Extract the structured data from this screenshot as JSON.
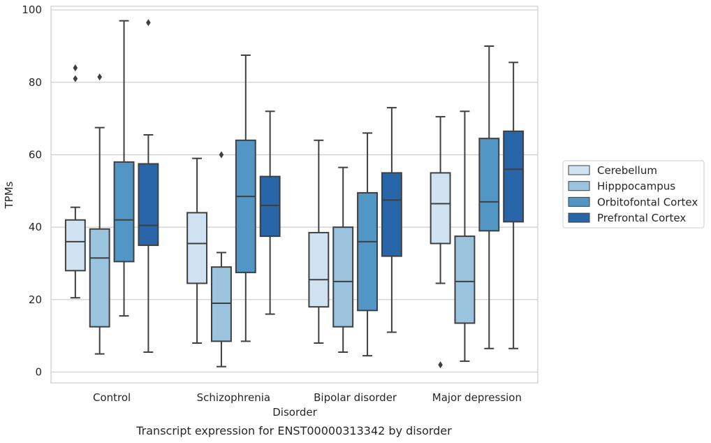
{
  "chart_data": {
    "type": "box",
    "title": "Transcript expression for ENST00000313342 by disorder",
    "xlabel": "Disorder",
    "ylabel": "TPMs",
    "ylim": [
      -3,
      101
    ],
    "yticks": [
      0,
      20,
      40,
      60,
      80,
      100
    ],
    "grid": "horizontal",
    "legend_position": "right",
    "categories": [
      "Control",
      "Schizophrenia",
      "Bipolar disorder",
      "Major depression"
    ],
    "series": [
      {
        "name": "Cerebellum",
        "color": "#d0e1f2",
        "boxes": [
          {
            "whislo": 20.5,
            "q1": 28,
            "med": 36,
            "q3": 42,
            "whishi": 45.5,
            "fliers": [
              81,
              84
            ]
          },
          {
            "whislo": 8,
            "q1": 24.5,
            "med": 35.5,
            "q3": 44,
            "whishi": 59,
            "fliers": []
          },
          {
            "whislo": 8,
            "q1": 18,
            "med": 25.5,
            "q3": 38.5,
            "whishi": 64,
            "fliers": []
          },
          {
            "whislo": 24.5,
            "q1": 35.5,
            "med": 46.5,
            "q3": 55,
            "whishi": 70.5,
            "fliers": [
              2
            ]
          }
        ]
      },
      {
        "name": "Hipppocampus",
        "color": "#9ac4de",
        "boxes": [
          {
            "whislo": 5,
            "q1": 12.5,
            "med": 31.5,
            "q3": 39.5,
            "whishi": 67.5,
            "fliers": [
              81.5
            ]
          },
          {
            "whislo": 1.5,
            "q1": 8.5,
            "med": 19,
            "q3": 29,
            "whishi": 33,
            "fliers": [
              60
            ]
          },
          {
            "whislo": 5.5,
            "q1": 12.5,
            "med": 25,
            "q3": 40,
            "whishi": 56.5,
            "fliers": []
          },
          {
            "whislo": 3,
            "q1": 13.5,
            "med": 25,
            "q3": 37.5,
            "whishi": 72,
            "fliers": []
          }
        ]
      },
      {
        "name": "Orbitofontal Cortex",
        "color": "#5296c5",
        "boxes": [
          {
            "whislo": 15.5,
            "q1": 30.5,
            "med": 42,
            "q3": 58,
            "whishi": 97,
            "fliers": []
          },
          {
            "whislo": 8.5,
            "q1": 27.5,
            "med": 48.5,
            "q3": 64,
            "whishi": 87.5,
            "fliers": []
          },
          {
            "whislo": 4.5,
            "q1": 17,
            "med": 36,
            "q3": 49.5,
            "whishi": 66,
            "fliers": []
          },
          {
            "whislo": 6.5,
            "q1": 39,
            "med": 47,
            "q3": 64.5,
            "whishi": 90,
            "fliers": []
          }
        ]
      },
      {
        "name": "Prefrontal Cortex",
        "color": "#2865a9",
        "boxes": [
          {
            "whislo": 5.5,
            "q1": 35,
            "med": 40.5,
            "q3": 57.5,
            "whishi": 65.5,
            "fliers": [
              96.5
            ]
          },
          {
            "whislo": 16,
            "q1": 37.5,
            "med": 46,
            "q3": 54,
            "whishi": 72,
            "fliers": []
          },
          {
            "whislo": 11,
            "q1": 32,
            "med": 47.5,
            "q3": 55,
            "whishi": 73,
            "fliers": []
          },
          {
            "whislo": 6.5,
            "q1": 41.5,
            "med": 56,
            "q3": 66.5,
            "whishi": 85.5,
            "fliers": []
          }
        ]
      }
    ]
  }
}
